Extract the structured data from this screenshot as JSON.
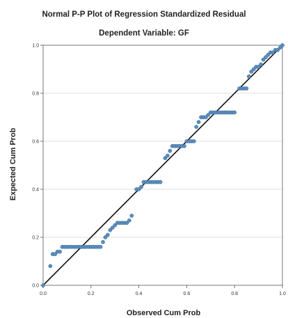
{
  "chart_data": {
    "type": "scatter",
    "title": "Normal P-P Plot of Regression Standardized Residual",
    "subtitle": "Dependent Variable: GF",
    "xlabel": "Observed Cum Prob",
    "ylabel": "Expected Cum Prob",
    "xlim": [
      0.0,
      1.0
    ],
    "ylim": [
      0.0,
      1.0
    ],
    "xticks": [
      "0.0",
      "0.2",
      "0.4",
      "0.6",
      "0.8",
      "1.0"
    ],
    "yticks": [
      "0.0",
      "0.2",
      "0.4",
      "0.6",
      "0.8",
      "1.0"
    ],
    "grid": true,
    "reference_line": {
      "from": [
        0.0,
        0.0
      ],
      "to": [
        1.0,
        1.0
      ]
    },
    "colors": {
      "points": "#5b8fbf",
      "point_edge": "#2f5f8f",
      "line": "#111111",
      "grid": "#d0d0d0"
    },
    "series": [
      {
        "points": [
          [
            0.0,
            0.0
          ],
          [
            0.03,
            0.08
          ],
          [
            0.04,
            0.13
          ],
          [
            0.05,
            0.13
          ],
          [
            0.06,
            0.14
          ],
          [
            0.07,
            0.14
          ],
          [
            0.08,
            0.16
          ],
          [
            0.09,
            0.16
          ],
          [
            0.1,
            0.16
          ],
          [
            0.11,
            0.16
          ],
          [
            0.12,
            0.16
          ],
          [
            0.13,
            0.16
          ],
          [
            0.14,
            0.16
          ],
          [
            0.15,
            0.16
          ],
          [
            0.16,
            0.16
          ],
          [
            0.17,
            0.16
          ],
          [
            0.18,
            0.16
          ],
          [
            0.19,
            0.16
          ],
          [
            0.2,
            0.16
          ],
          [
            0.21,
            0.16
          ],
          [
            0.22,
            0.16
          ],
          [
            0.23,
            0.16
          ],
          [
            0.24,
            0.16
          ],
          [
            0.25,
            0.18
          ],
          [
            0.26,
            0.2
          ],
          [
            0.27,
            0.21
          ],
          [
            0.28,
            0.23
          ],
          [
            0.29,
            0.24
          ],
          [
            0.3,
            0.25
          ],
          [
            0.31,
            0.26
          ],
          [
            0.32,
            0.26
          ],
          [
            0.33,
            0.26
          ],
          [
            0.34,
            0.26
          ],
          [
            0.35,
            0.26
          ],
          [
            0.36,
            0.27
          ],
          [
            0.37,
            0.29
          ],
          [
            0.39,
            0.4
          ],
          [
            0.4,
            0.4
          ],
          [
            0.41,
            0.41
          ],
          [
            0.42,
            0.43
          ],
          [
            0.43,
            0.43
          ],
          [
            0.44,
            0.43
          ],
          [
            0.45,
            0.43
          ],
          [
            0.46,
            0.43
          ],
          [
            0.47,
            0.43
          ],
          [
            0.48,
            0.43
          ],
          [
            0.49,
            0.43
          ],
          [
            0.51,
            0.53
          ],
          [
            0.52,
            0.54
          ],
          [
            0.53,
            0.56
          ],
          [
            0.54,
            0.58
          ],
          [
            0.55,
            0.58
          ],
          [
            0.56,
            0.58
          ],
          [
            0.57,
            0.58
          ],
          [
            0.58,
            0.58
          ],
          [
            0.59,
            0.58
          ],
          [
            0.6,
            0.6
          ],
          [
            0.61,
            0.6
          ],
          [
            0.62,
            0.6
          ],
          [
            0.63,
            0.6
          ],
          [
            0.64,
            0.66
          ],
          [
            0.65,
            0.68
          ],
          [
            0.66,
            0.7
          ],
          [
            0.67,
            0.7
          ],
          [
            0.68,
            0.7
          ],
          [
            0.69,
            0.71
          ],
          [
            0.7,
            0.72
          ],
          [
            0.71,
            0.72
          ],
          [
            0.72,
            0.72
          ],
          [
            0.73,
            0.72
          ],
          [
            0.74,
            0.72
          ],
          [
            0.75,
            0.72
          ],
          [
            0.76,
            0.72
          ],
          [
            0.77,
            0.72
          ],
          [
            0.78,
            0.72
          ],
          [
            0.79,
            0.72
          ],
          [
            0.8,
            0.72
          ],
          [
            0.82,
            0.82
          ],
          [
            0.83,
            0.82
          ],
          [
            0.84,
            0.82
          ],
          [
            0.85,
            0.82
          ],
          [
            0.86,
            0.87
          ],
          [
            0.87,
            0.89
          ],
          [
            0.88,
            0.9
          ],
          [
            0.89,
            0.91
          ],
          [
            0.9,
            0.91
          ],
          [
            0.91,
            0.92
          ],
          [
            0.92,
            0.94
          ],
          [
            0.93,
            0.95
          ],
          [
            0.94,
            0.96
          ],
          [
            0.95,
            0.97
          ],
          [
            0.96,
            0.97
          ],
          [
            0.97,
            0.98
          ],
          [
            0.98,
            0.98
          ],
          [
            0.99,
            0.99
          ],
          [
            1.0,
            1.0
          ]
        ]
      }
    ]
  }
}
